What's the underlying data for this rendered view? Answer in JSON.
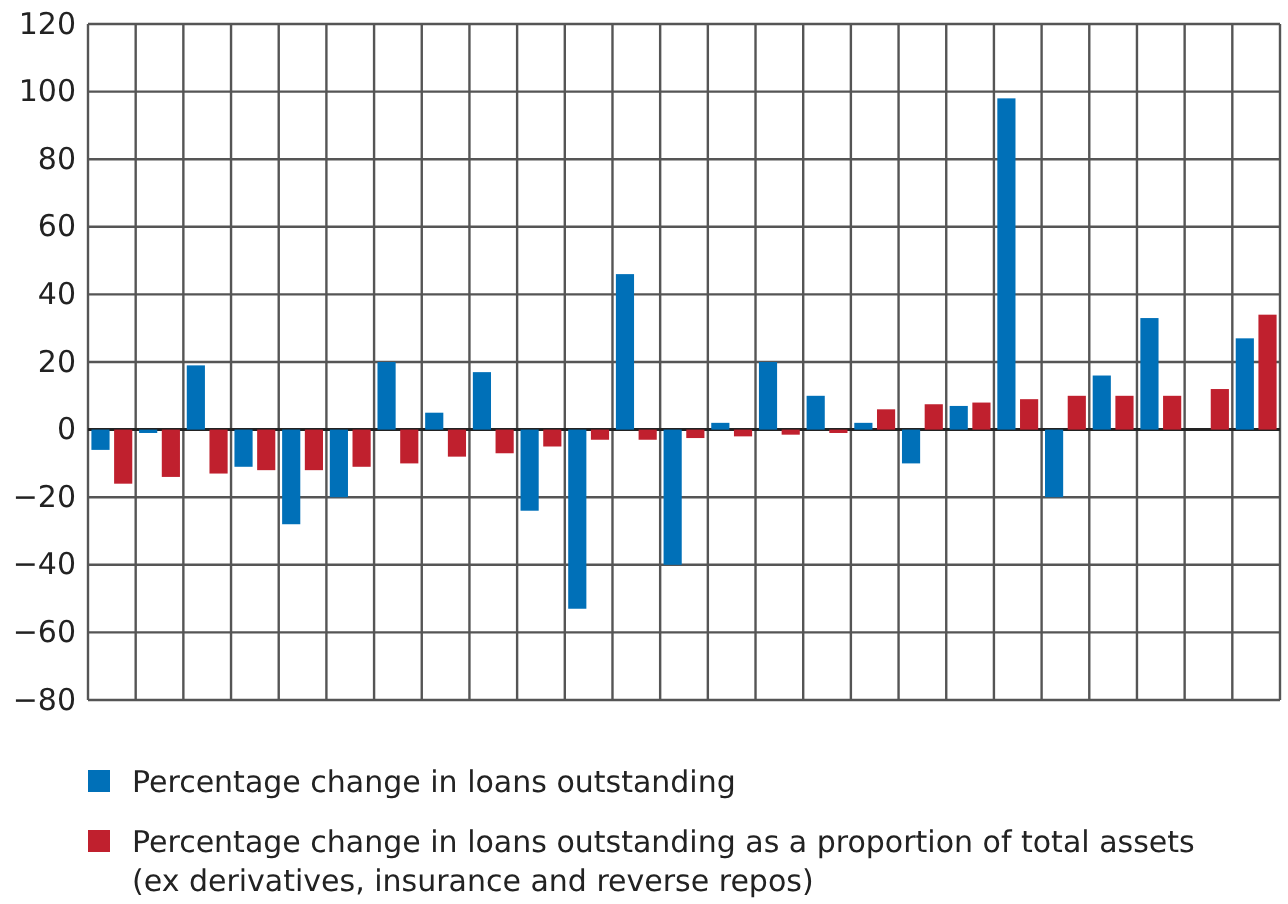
{
  "chart_data": {
    "type": "bar",
    "categories": [
      null,
      null,
      null,
      null,
      null,
      null,
      null,
      null,
      null,
      null,
      null,
      null,
      null,
      null,
      null,
      null,
      null,
      null,
      null,
      null,
      null,
      null,
      null,
      null,
      null
    ],
    "series": [
      {
        "name": "Percentage change in loans outstanding",
        "color": "#0070b8",
        "values": [
          -6,
          -1,
          19,
          -11,
          -28,
          -20,
          20,
          5,
          17,
          -24,
          -53,
          46,
          -40,
          2,
          20,
          10,
          2,
          -10,
          7,
          98,
          -20,
          16,
          33,
          null,
          27
        ]
      },
      {
        "name": "Percentage change in loans outstanding as a proportion of total assets (ex derivatives, insurance and reverse repos)",
        "color": "#c0202e",
        "values": [
          -16,
          -14,
          -13,
          -12,
          -12,
          -11,
          -10,
          -8,
          -7,
          -5,
          -3,
          -3,
          -2.5,
          -2,
          -1.5,
          -1,
          6,
          7.5,
          8,
          9,
          10,
          10,
          10,
          12,
          34
        ]
      }
    ],
    "ylim": [
      -80,
      120
    ],
    "yticks": [
      -80,
      -60,
      -40,
      -20,
      0,
      20,
      40,
      60,
      80,
      100,
      120
    ],
    "grid": true,
    "legend": "bottom"
  }
}
